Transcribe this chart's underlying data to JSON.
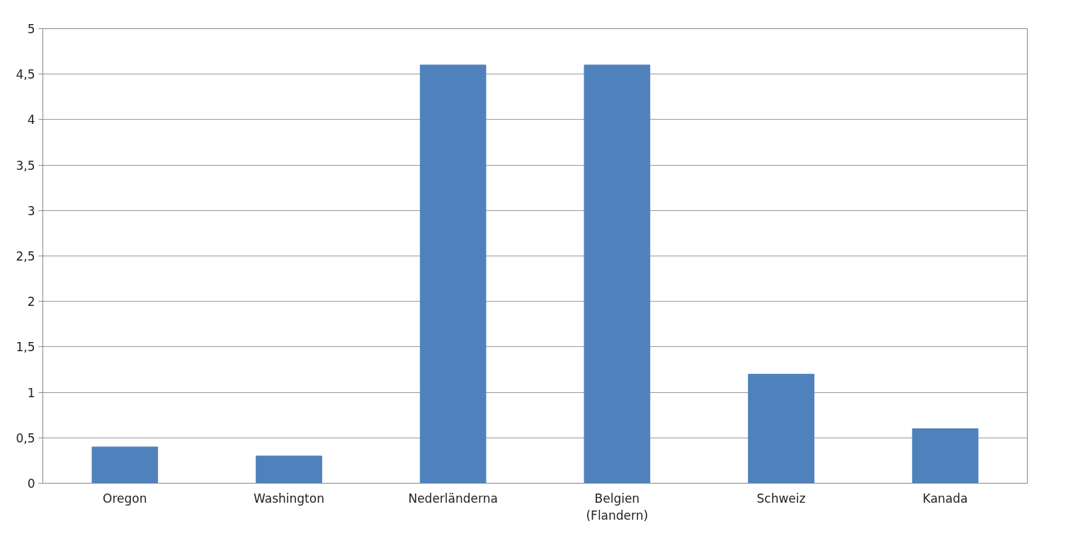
{
  "chart_data": {
    "type": "bar",
    "categories": [
      "Oregon",
      "Washington",
      "Nederländerna",
      "Belgien\n(Flandern)",
      "Schweiz",
      "Kanada"
    ],
    "values": [
      0.4,
      0.3,
      4.6,
      4.6,
      1.2,
      0.6
    ],
    "color": "#4f81bd",
    "ylim": [
      0,
      5
    ],
    "yticks": [
      0,
      {
        "value": 0.5,
        "label": "0,5"
      },
      1,
      {
        "value": 1.5,
        "label": "1,5"
      },
      2,
      {
        "value": 2.5,
        "label": "2,5"
      },
      3,
      {
        "value": 3.5,
        "label": "3,5"
      },
      4,
      {
        "value": 4.5,
        "label": "4,5"
      },
      5
    ],
    "grid": "y"
  }
}
